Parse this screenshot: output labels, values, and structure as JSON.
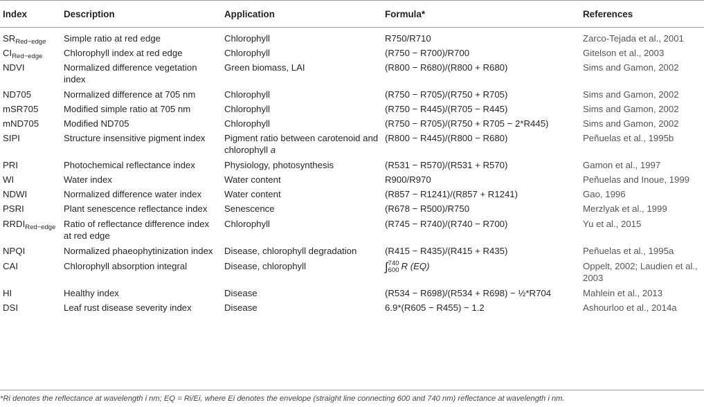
{
  "table": {
    "headers": {
      "index": "Index",
      "description": "Description",
      "application": "Application",
      "formula": "Formula*",
      "references": "References"
    },
    "rows": [
      {
        "index": "SR",
        "index_sub": "Red−edge",
        "description": "Simple ratio at red edge",
        "application": "Chlorophyll",
        "formula": "R750/R710",
        "reference": "Zarco-Tejada et al., 2001"
      },
      {
        "index": "CI",
        "index_sub": "Red−edge",
        "description": "Chlorophyll index at red edge",
        "application": "Chlorophyll",
        "formula": "(R750 − R700)/R700",
        "reference": "Gitelson et al., 2003"
      },
      {
        "index": "NDVI",
        "description": "Normalized difference vegetation index",
        "application": "Green biomass, LAI",
        "formula": "(R800 − R680)/(R800 + R680)",
        "reference": "Sims and Gamon, 2002"
      },
      {
        "index": "ND705",
        "description": "Normalized difference at 705 nm",
        "application": "Chlorophyll",
        "formula": "(R750 − R705)/(R750 + R705)",
        "reference": "Sims and Gamon, 2002"
      },
      {
        "index": "mSR705",
        "description": "Modified simple ratio at 705 nm",
        "application": "Chlorophyll",
        "formula": "(R750 − R445)/(R705 − R445)",
        "reference": "Sims and Gamon, 2002"
      },
      {
        "index": "mND705",
        "description": "Modified ND705",
        "application": "Chlorophyll",
        "formula": "(R750 − R705)/(R750 + R705 − 2*R445)",
        "reference": "Sims and Gamon, 2002"
      },
      {
        "index": "SIPI",
        "description": "Structure insensitive pigment index",
        "application": "Pigment ratio between carotenoid and chlorophyll",
        "application_italic": "a",
        "formula": "(R800 − R445)/(R800 − R680)",
        "reference": "Peñuelas et al., 1995b"
      },
      {
        "index": "PRI",
        "description": "Photochemical reflectance index",
        "application": "Physiology, photosynthesis",
        "formula": "(R531 − R570)/(R531 + R570)",
        "reference": "Gamon et al., 1997"
      },
      {
        "index": "WI",
        "description": "Water index",
        "application": "Water content",
        "formula": "R900/R970",
        "reference": "Peñuelas and Inoue, 1999"
      },
      {
        "index": "NDWI",
        "description": "Normalized difference water index",
        "application": "Water content",
        "formula": "(R857 − R1241)/(R857 + R1241)",
        "reference": "Gao, 1996"
      },
      {
        "index": "PSRI",
        "description": "Plant senescence reflectance index",
        "application": "Senescence",
        "formula": "(R678 − R500)/R750",
        "reference": "Merzlyak et al., 1999"
      },
      {
        "index": "RRDI",
        "index_sub": "Red−edge",
        "description": "Ratio of reflectance difference index at red edge",
        "application": "Chlorophyll",
        "formula": "(R745 − R740)/(R740 − R700)",
        "reference": "Yu et al., 2015"
      },
      {
        "index": "NPQI",
        "description": "Normalized phaeophytinization index",
        "application": "Disease, chlorophyll degradation",
        "formula": "(R415 − R435)/(R415 + R435)",
        "reference": "Peñuelas et al., 1995a"
      },
      {
        "index": "CAI",
        "description": "Chlorophyll absorption integral",
        "application": "Disease, chlorophyll",
        "formula_integral": {
          "symbol": "∫",
          "lower": "600",
          "upper": "740",
          "body": "R (EQ)"
        },
        "reference": "Oppelt, 2002; Laudien et al., 2003"
      },
      {
        "index": "HI",
        "description": "Healthy index",
        "application": "Disease",
        "formula": "(R534 − R698)/(R534 + R698) − ½*R704",
        "reference": "Mahlein et al., 2013"
      },
      {
        "index": "DSI",
        "description": "Leaf rust disease severity index",
        "application": "Disease",
        "formula": "6.9*(R605 − R455) − 1.2",
        "reference": "Ashourloo et al., 2014a"
      }
    ]
  },
  "footnote": "*Ri denotes the reflectance at wavelength i nm; EQ = Ri/Ei, where Ei denotes the envelope (straight line connecting 600 and 740 nm) reflectance at wavelength i nm."
}
